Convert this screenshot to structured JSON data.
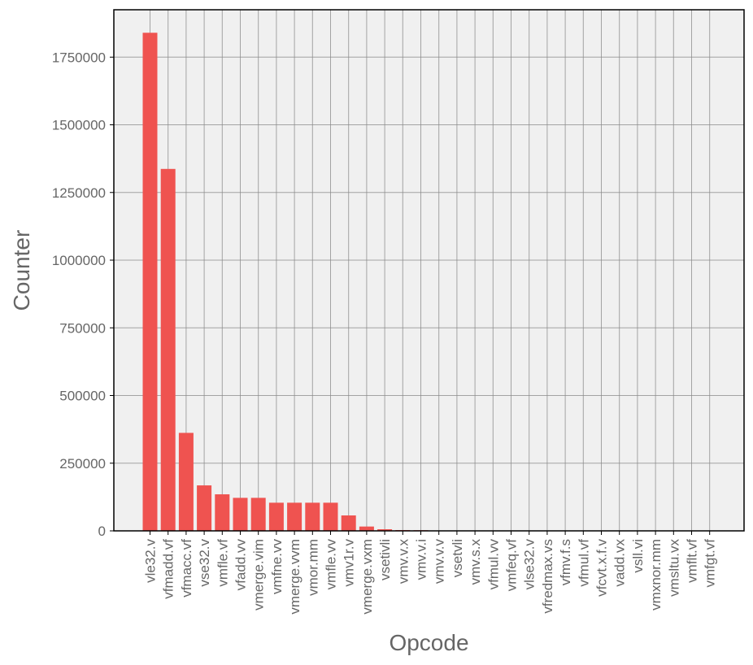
{
  "chart_data": {
    "type": "bar",
    "title": "",
    "xlabel": "Opcode",
    "ylabel": "Counter",
    "ylim": [
      0,
      1925000
    ],
    "yticks": [
      0,
      250000,
      500000,
      750000,
      1000000,
      1250000,
      1500000,
      1750000
    ],
    "ytick_labels": [
      "0",
      "250000",
      "500000",
      "750000",
      "1000000",
      "1250000",
      "1500000",
      "1750000"
    ],
    "grid": true,
    "legend": "none",
    "bar_color": "#ef5350",
    "plot_background": "#f0f0f0",
    "categories": [
      "vle32.v",
      "vfmadd.vf",
      "vfmacc.vf",
      "vse32.v",
      "vmfle.vf",
      "vfadd.vv",
      "vmerge.vim",
      "vmfne.vv",
      "vmerge.vvm",
      "vmor.mm",
      "vmfle.vv",
      "vmv1r.v",
      "vmerge.vxm",
      "vsetivli",
      "vmv.v.x",
      "vmv.v.i",
      "vmv.v.v",
      "vsetvli",
      "vmv.s.x",
      "vfmul.vv",
      "vmfeq.vf",
      "vlse32.v",
      "vfredmax.vs",
      "vfmv.f.s",
      "vfmul.vf",
      "vfcvt.x.f.v",
      "vadd.vx",
      "vsll.vi",
      "vmxnor.mm",
      "vmsltu.vx",
      "vmflt.vf",
      "vmfgt.vf"
    ],
    "values": [
      1840000,
      1337000,
      362000,
      168000,
      135000,
      122000,
      122000,
      104000,
      104000,
      104000,
      104000,
      57000,
      16000,
      6000,
      3000,
      2500,
      1000,
      700,
      500,
      400,
      300,
      250,
      200,
      150,
      120,
      100,
      80,
      60,
      50,
      40,
      30,
      20
    ]
  }
}
